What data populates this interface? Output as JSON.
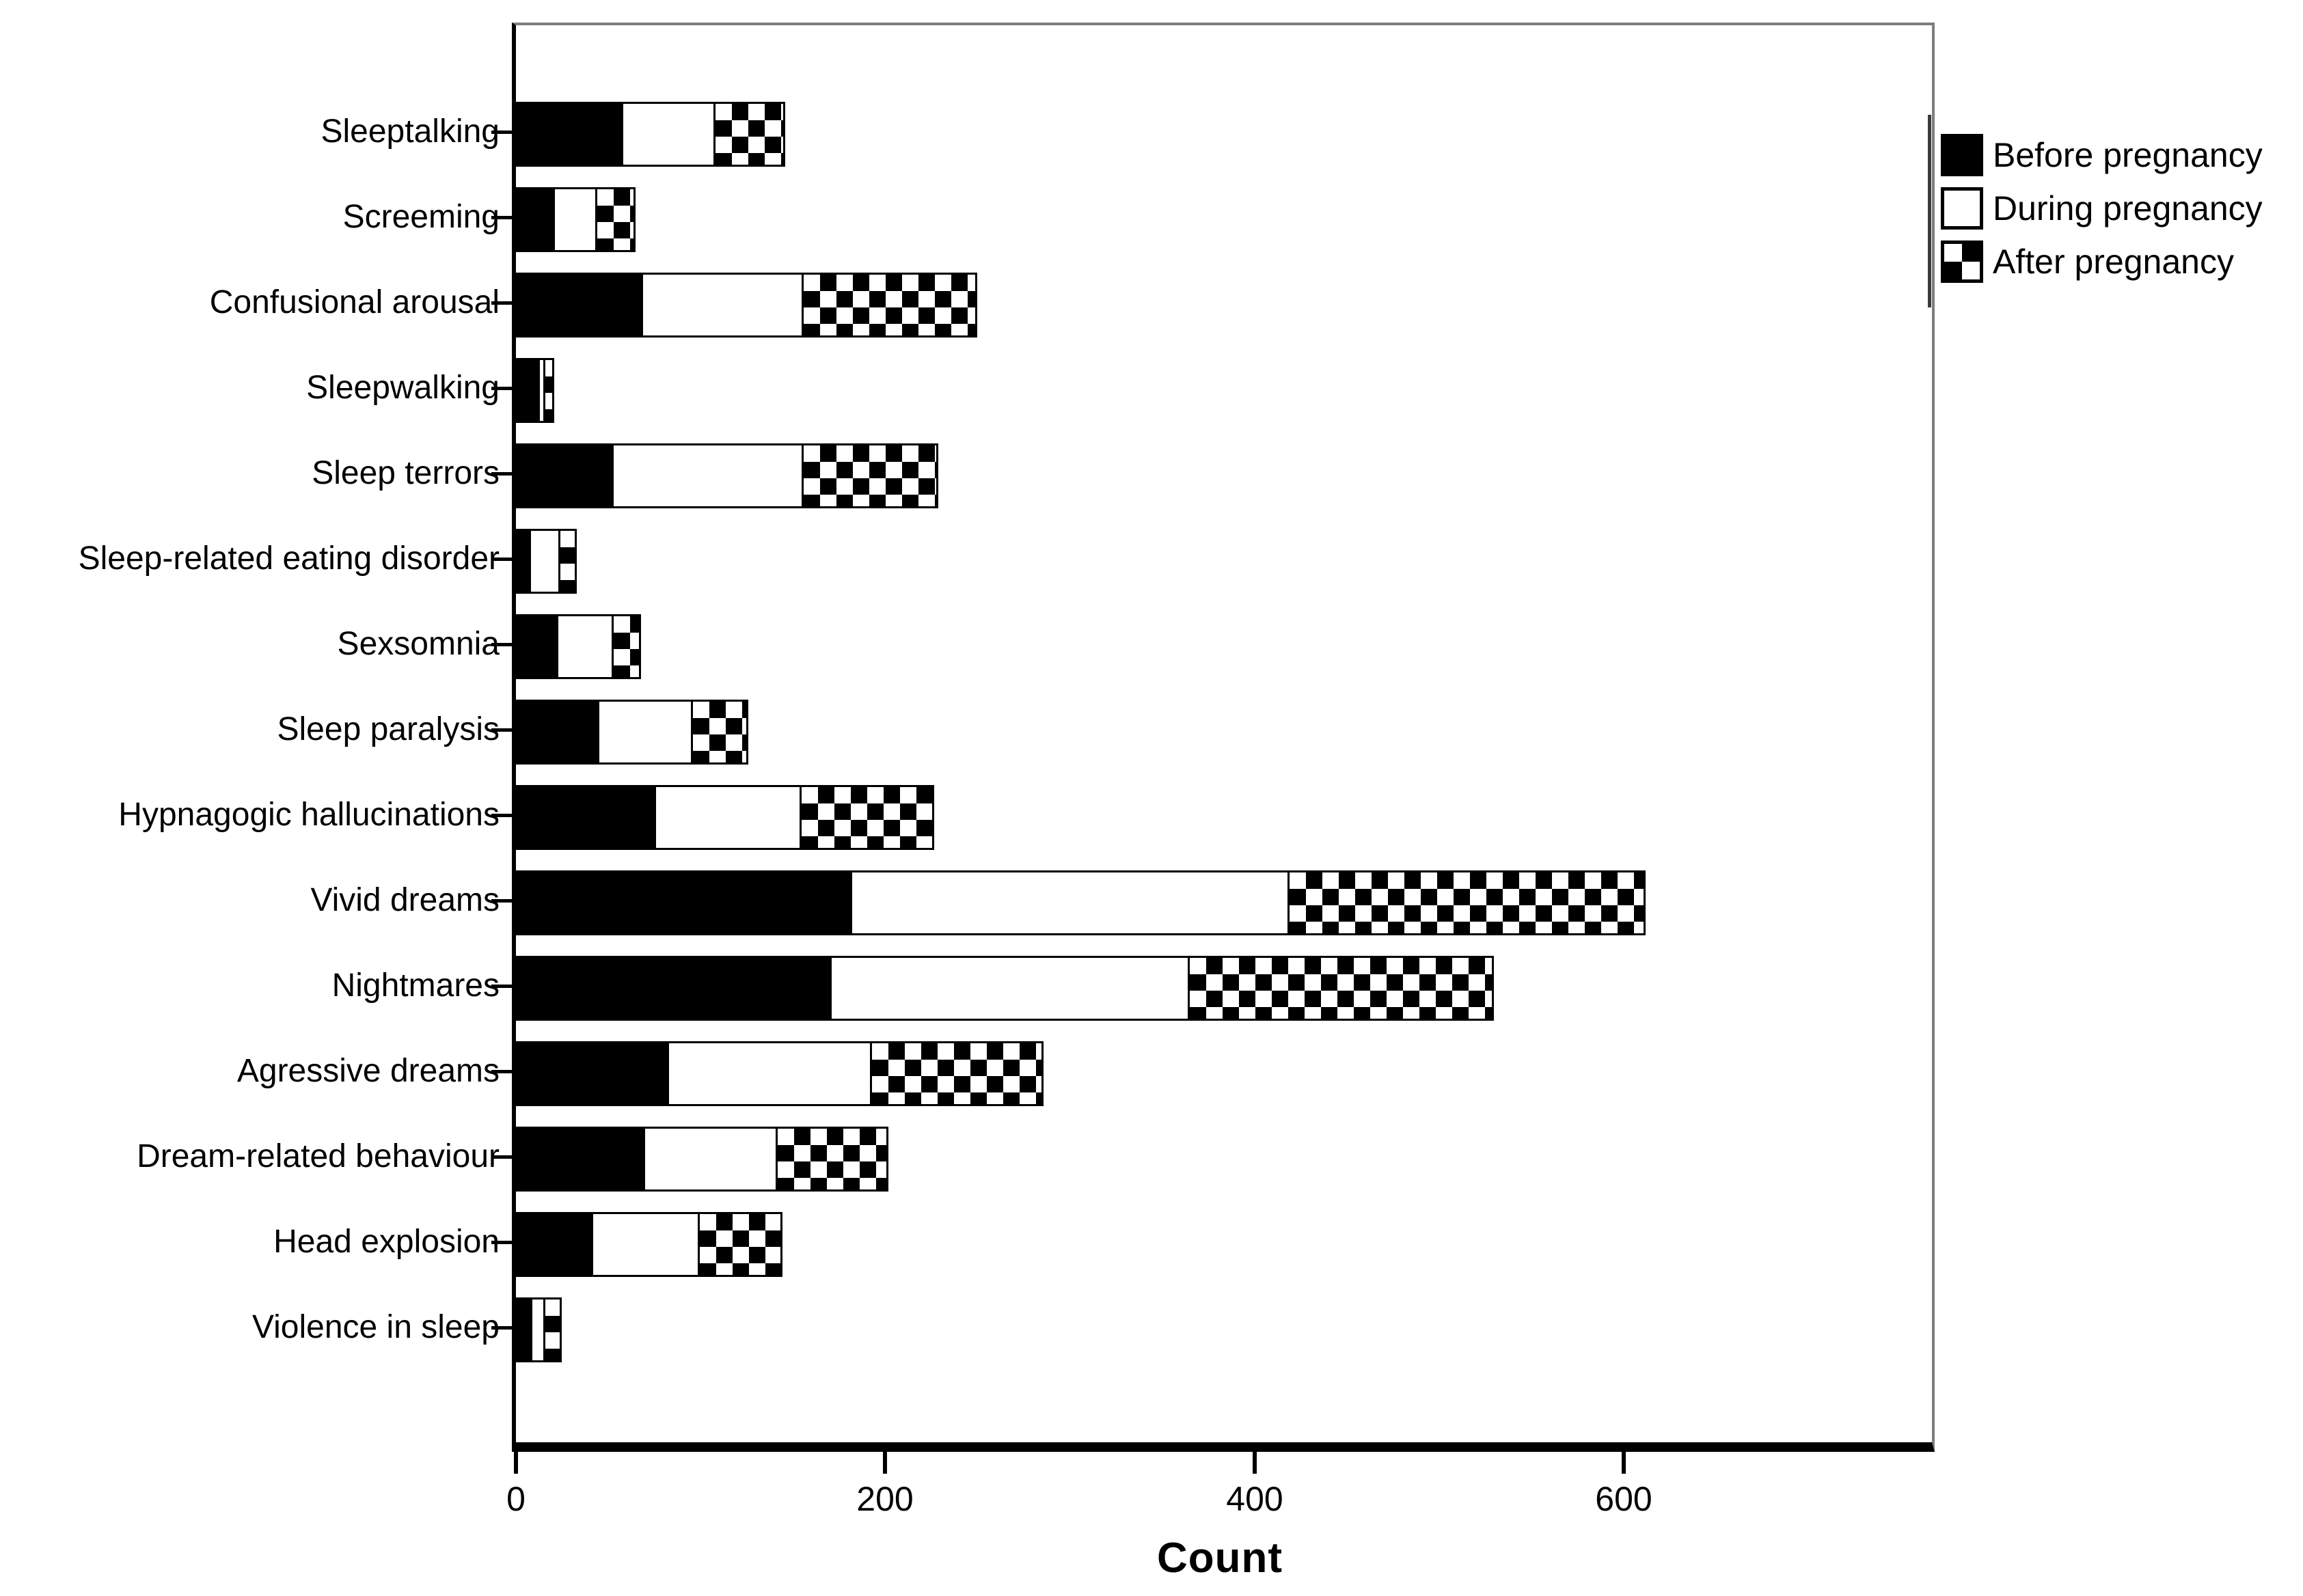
{
  "chart_data": {
    "type": "bar",
    "orientation": "horizontal",
    "stacked": true,
    "title": "",
    "xlabel": "Count",
    "x_ticks": [
      0,
      200,
      400,
      600
    ],
    "xlim": [
      0,
      767
    ],
    "grid": false,
    "legend_position": "top-right-outside",
    "categories": [
      "Sleeptalking",
      "Screeming",
      "Confusional arousal",
      "Sleepwalking",
      "Sleep terrors",
      "Sleep-related eating disorder",
      "Sexsomnia",
      "Sleep paralysis",
      "Hypnagogic hallucinations",
      "Vivid dreams",
      "Nightmares",
      "Agressive dreams",
      "Dream-related behaviour",
      "Head explosion",
      "Violence in sleep"
    ],
    "series": [
      {
        "name": "Before pregnancy",
        "style": "solid-black",
        "color": "#000000",
        "values": [
          58,
          21,
          69,
          13,
          53,
          8,
          23,
          45,
          76,
          182,
          171,
          83,
          70,
          42,
          9
        ]
      },
      {
        "name": "During pregnancy",
        "style": "white-outline",
        "color": "#ffffff",
        "values": [
          51,
          24,
          88,
          4,
          104,
          17,
          31,
          52,
          80,
          238,
          195,
          111,
          73,
          59,
          8
        ]
      },
      {
        "name": "After pregnancy",
        "style": "checkerboard",
        "color": "#000000 on #ffffff",
        "values": [
          39,
          22,
          95,
          6,
          74,
          10,
          16,
          31,
          73,
          194,
          166,
          94,
          61,
          46,
          10
        ]
      }
    ],
    "colors": {
      "bar_border": "#000000",
      "axis": "#000000",
      "frame": "#7d7d7d",
      "background": "#ffffff"
    }
  }
}
